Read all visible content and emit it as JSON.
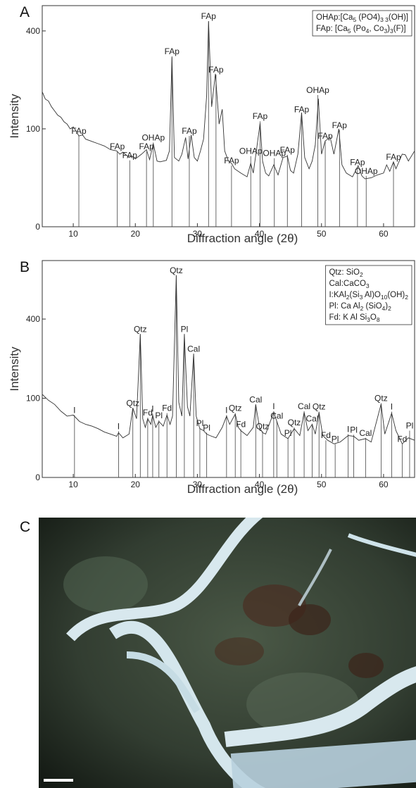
{
  "chart_data": [
    {
      "type": "line",
      "panel": "A",
      "ylabel": "Intensity",
      "xlabel": "Diffraction angle (2θ)",
      "yscale": "sqrt",
      "xlim": [
        5,
        65
      ],
      "ylim": [
        0,
        510
      ],
      "xticks": [
        10,
        20,
        30,
        40,
        50,
        60
      ],
      "yticks": [
        0,
        100,
        400
      ],
      "color": "#333333",
      "x": [
        5,
        5.5,
        6,
        6.5,
        7,
        7.5,
        8,
        8.5,
        9,
        9.5,
        10,
        10.5,
        10.9,
        11.5,
        12,
        13,
        14,
        15,
        16,
        17,
        17.5,
        18,
        19,
        19.5,
        20,
        21,
        21.8,
        22.3,
        22.9,
        23.5,
        24,
        25,
        25.5,
        25.9,
        26.3,
        27,
        27.5,
        28.1,
        28.5,
        29,
        29.5,
        30,
        30.5,
        31,
        31.5,
        31.8,
        32.3,
        32.9,
        33.5,
        34,
        34.4,
        35,
        35.5,
        36,
        37,
        38,
        38.6,
        39,
        39.5,
        40.1,
        40.5,
        41,
        41.5,
        42.3,
        43,
        43.8,
        44.5,
        45,
        45.5,
        46.2,
        46.8,
        47.3,
        48,
        48.5,
        49,
        49.5,
        50,
        50.6,
        51.4,
        52,
        52.8,
        53.3,
        54,
        55,
        55.9,
        56.5,
        57,
        58,
        59,
        60,
        60.5,
        61,
        61.6,
        62,
        63,
        63.5,
        64,
        65
      ],
      "values": [
        190,
        170,
        165,
        150,
        140,
        130,
        125,
        115,
        110,
        100,
        104,
        95,
        86,
        88,
        80,
        76,
        72,
        68,
        62,
        60,
        55,
        58,
        50,
        52,
        48,
        55,
        62,
        47,
        72,
        45,
        44,
        46,
        60,
        300,
        50,
        45,
        55,
        83,
        48,
        88,
        50,
        45,
        60,
        80,
        180,
        441,
        150,
        244,
        110,
        144,
        60,
        45,
        42,
        35,
        30,
        26,
        42,
        30,
        60,
        112,
        45,
        30,
        27,
        40,
        28,
        50,
        52,
        33,
        30,
        55,
        136,
        50,
        35,
        45,
        70,
        171,
        55,
        77,
        83,
        55,
        100,
        40,
        30,
        26,
        39,
        27,
        24,
        25,
        28,
        30,
        40,
        32,
        44,
        35,
        55,
        54,
        45,
        60
      ],
      "peaks": [
        {
          "label": "FAp",
          "x": 10.9,
          "y": 86
        },
        {
          "label": "FAp",
          "x": 17.1,
          "y": 59
        },
        {
          "label": "FAp",
          "x": 19.1,
          "y": 46
        },
        {
          "label": "FAp",
          "x": 21.8,
          "y": 59
        },
        {
          "label": "OHAp",
          "x": 22.9,
          "y": 74
        },
        {
          "label": "FAp",
          "x": 25.9,
          "y": 303
        },
        {
          "label": "FAp",
          "x": 28.7,
          "y": 86
        },
        {
          "label": "FAp",
          "x": 31.8,
          "y": 441
        },
        {
          "label": "FAp",
          "x": 33.0,
          "y": 241
        },
        {
          "label": "FAp",
          "x": 35.5,
          "y": 39
        },
        {
          "label": "OHAp",
          "x": 38.6,
          "y": 52
        },
        {
          "label": "FAp",
          "x": 40.1,
          "y": 116
        },
        {
          "label": "OHAp",
          "x": 42.4,
          "y": 49
        },
        {
          "label": "FAp",
          "x": 44.5,
          "y": 54
        },
        {
          "label": "FAp",
          "x": 46.8,
          "y": 132
        },
        {
          "label": "OHAp",
          "x": 49.4,
          "y": 181
        },
        {
          "label": "FAp",
          "x": 50.6,
          "y": 77
        },
        {
          "label": "FAp",
          "x": 52.9,
          "y": 97
        },
        {
          "label": "FAp",
          "x": 55.8,
          "y": 37
        },
        {
          "label": "OHAp",
          "x": 57.2,
          "y": 27
        },
        {
          "label": "FAp",
          "x": 61.6,
          "y": 44
        }
      ],
      "legend": [
        [
          "OHAp:[Ca",
          "5",
          " (PO4)",
          "3 3",
          "(OH)]"
        ],
        [
          "FAp: [Ca",
          "5",
          " (Po",
          "4",
          ", Co",
          "3",
          ")",
          "3",
          "(F)]"
        ]
      ]
    },
    {
      "type": "line",
      "panel": "B",
      "ylabel": "Intensity",
      "xlabel": "Diffraction angle (2θ)",
      "yscale": "sqrt",
      "xlim": [
        5,
        65
      ],
      "ylim": [
        0,
        750
      ],
      "xticks": [
        10,
        20,
        30,
        40,
        50,
        60
      ],
      "yticks": [
        0,
        100,
        400
      ],
      "color": "#333333",
      "x": [
        5,
        6,
        7,
        8,
        9,
        10,
        11,
        12,
        13,
        14,
        15,
        16,
        17,
        17.3,
        18,
        19,
        19.6,
        20.2,
        20.8,
        21.2,
        21.6,
        22,
        22.5,
        22.8,
        23.3,
        23.8,
        24.5,
        25.1,
        25.6,
        26,
        26.6,
        27,
        27.5,
        27.9,
        28.4,
        28.8,
        29.4,
        29.8,
        30.4,
        31,
        31.5,
        32,
        33,
        34,
        34.7,
        35.2,
        36.1,
        36.6,
        37,
        38,
        39,
        39.4,
        40,
        40.5,
        41,
        42.3,
        42.8,
        43.5,
        44.6,
        45.6,
        46.5,
        47.2,
        47.8,
        48.5,
        49,
        49.6,
        50.2,
        51,
        52,
        53,
        54.3,
        55.2,
        56,
        57.1,
        58,
        59.6,
        60.2,
        61.3,
        62,
        63,
        64,
        65
      ],
      "values": [
        110,
        95,
        85,
        70,
        60,
        62,
        50,
        45,
        42,
        38,
        33,
        30,
        27,
        32,
        25,
        30,
        77,
        55,
        328,
        55,
        40,
        55,
        45,
        62,
        40,
        50,
        42,
        62,
        45,
        60,
        652,
        90,
        60,
        328,
        80,
        60,
        244,
        60,
        38,
        35,
        30,
        28,
        25,
        40,
        60,
        45,
        64,
        40,
        35,
        28,
        40,
        85,
        40,
        32,
        30,
        68,
        50,
        30,
        24,
        38,
        28,
        68,
        35,
        45,
        30,
        68,
        28,
        22,
        18,
        20,
        28,
        27,
        22,
        24,
        20,
        86,
        30,
        66,
        35,
        18,
        25,
        22
      ],
      "peaks": [
        {
          "label": "I",
          "x": 10.2,
          "y": 62
        },
        {
          "label": "I",
          "x": 17.3,
          "y": 34
        },
        {
          "label": "Qtz",
          "x": 19.6,
          "y": 77
        },
        {
          "label": "Qtz",
          "x": 20.8,
          "y": 328
        },
        {
          "label": "Fd",
          "x": 22.0,
          "y": 57
        },
        {
          "label": "I",
          "x": 22.8,
          "y": 65
        },
        {
          "label": "Pl",
          "x": 23.8,
          "y": 52
        },
        {
          "label": "Fd",
          "x": 25.1,
          "y": 66
        },
        {
          "label": "Qtz",
          "x": 26.6,
          "y": 652
        },
        {
          "label": "Pl",
          "x": 27.9,
          "y": 328
        },
        {
          "label": "Cal",
          "x": 29.4,
          "y": 244
        },
        {
          "label": "Pl",
          "x": 30.4,
          "y": 39
        },
        {
          "label": "Pl",
          "x": 31.5,
          "y": 32
        },
        {
          "label": "I",
          "x": 34.7,
          "y": 62
        },
        {
          "label": "Qtz",
          "x": 36.1,
          "y": 66
        },
        {
          "label": "Fd",
          "x": 37.0,
          "y": 37
        },
        {
          "label": "Cal",
          "x": 39.4,
          "y": 85
        },
        {
          "label": "Qtz",
          "x": 40.5,
          "y": 34
        },
        {
          "label": "I",
          "x": 42.3,
          "y": 70
        },
        {
          "label": "Cal",
          "x": 42.8,
          "y": 51
        },
        {
          "label": "Pl",
          "x": 44.6,
          "y": 25
        },
        {
          "label": "Qtz",
          "x": 45.6,
          "y": 40
        },
        {
          "label": "Cal",
          "x": 47.2,
          "y": 70
        },
        {
          "label": "Cal",
          "x": 48.5,
          "y": 46
        },
        {
          "label": "Qtz",
          "x": 49.6,
          "y": 69
        },
        {
          "label": "Fd",
          "x": 50.7,
          "y": 22
        },
        {
          "label": "Pl",
          "x": 52.2,
          "y": 18
        },
        {
          "label": "I",
          "x": 54.3,
          "y": 30
        },
        {
          "label": "Pl",
          "x": 55.2,
          "y": 29
        },
        {
          "label": "Cal",
          "x": 57.1,
          "y": 25
        },
        {
          "label": "Qtz",
          "x": 59.6,
          "y": 88
        },
        {
          "label": "I",
          "x": 61.3,
          "y": 69
        },
        {
          "label": "Fd",
          "x": 63.0,
          "y": 18
        },
        {
          "label": "Pl",
          "x": 64.2,
          "y": 35
        }
      ],
      "legend": [
        [
          "Qtz: SiO",
          "2"
        ],
        [
          "Cal:CaCO",
          "3"
        ],
        [
          "I:KAl",
          "2",
          "(Si",
          "3",
          " Al)O",
          "10",
          "(OH)",
          "2"
        ],
        [
          "Pl: Ca Al",
          "2",
          " (SiO",
          "4",
          ")",
          "2"
        ],
        [
          "Fd: K Al Si",
          "3",
          "O",
          "8"
        ]
      ]
    }
  ],
  "panel_c": {
    "label": "C"
  }
}
